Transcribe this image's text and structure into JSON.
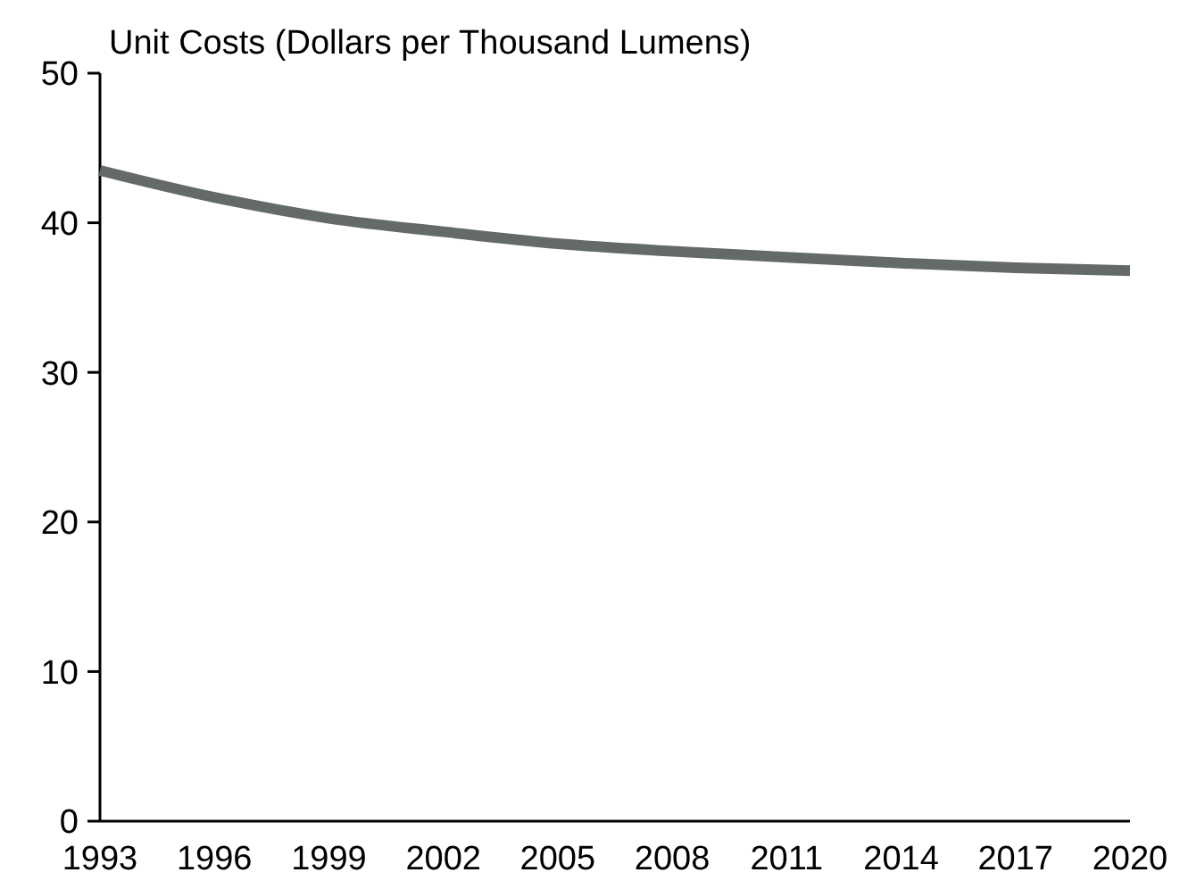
{
  "chart_data": {
    "type": "line",
    "ylabel": "Unit Costs (Dollars per Thousand Lumens)",
    "x": [
      1993,
      1996,
      1999,
      2002,
      2005,
      2008,
      2011,
      2014,
      2017,
      2020
    ],
    "series": [
      {
        "color": "#646a6a",
        "values": [
          43.5,
          41.7,
          40.3,
          39.4,
          38.6,
          38.1,
          37.7,
          37.3,
          37.0,
          36.8
        ]
      }
    ],
    "xlim": [
      1993,
      2020
    ],
    "xticks": [
      1993,
      1996,
      1999,
      2002,
      2005,
      2008,
      2011,
      2014,
      2017,
      2020
    ],
    "ylim": [
      0,
      50
    ],
    "yticks": [
      0,
      10,
      20,
      30,
      40,
      50
    ],
    "grid": false,
    "marker": "none",
    "line_style": "solid"
  }
}
